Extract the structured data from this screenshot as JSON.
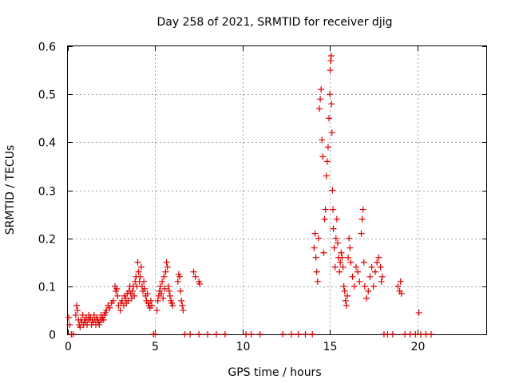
{
  "chart_data": {
    "type": "scatter",
    "title": "Day 258 of 2021, SRMTID for receiver djig",
    "xlabel": "GPS time / hours",
    "ylabel": "SRMTID / TECUs",
    "xlim": [
      0,
      24
    ],
    "ylim": [
      0,
      0.6
    ],
    "x_ticks": [
      0,
      5,
      10,
      15,
      20
    ],
    "x_tick_labels": [
      "0",
      "5",
      "10",
      "15",
      "20"
    ],
    "y_ticks": [
      0,
      0.1,
      0.2,
      0.3,
      0.4,
      0.5,
      0.6
    ],
    "y_tick_labels": [
      "0",
      "0.1",
      "0.2",
      "0.3",
      "0.4",
      "0.5",
      "0.6"
    ],
    "grid": true,
    "marker": "+",
    "series": [
      {
        "name": "SRMTID",
        "color": "#dd0000",
        "points": [
          [
            0.05,
            0.035
          ],
          [
            0.1,
            0.02
          ],
          [
            0.2,
            0.0
          ],
          [
            0.3,
            0.0
          ],
          [
            0.45,
            0.04
          ],
          [
            0.5,
            0.06
          ],
          [
            0.55,
            0.05
          ],
          [
            0.6,
            0.03
          ],
          [
            0.65,
            0.02
          ],
          [
            0.7,
            0.015
          ],
          [
            0.75,
            0.03
          ],
          [
            0.8,
            0.025
          ],
          [
            0.85,
            0.04
          ],
          [
            0.9,
            0.02
          ],
          [
            0.95,
            0.03
          ],
          [
            1.0,
            0.025
          ],
          [
            1.05,
            0.035
          ],
          [
            1.1,
            0.02
          ],
          [
            1.15,
            0.03
          ],
          [
            1.2,
            0.04
          ],
          [
            1.25,
            0.03
          ],
          [
            1.3,
            0.035
          ],
          [
            1.35,
            0.02
          ],
          [
            1.4,
            0.03
          ],
          [
            1.45,
            0.025
          ],
          [
            1.5,
            0.04
          ],
          [
            1.55,
            0.03
          ],
          [
            1.6,
            0.02
          ],
          [
            1.65,
            0.035
          ],
          [
            1.7,
            0.03
          ],
          [
            1.75,
            0.025
          ],
          [
            1.8,
            0.02
          ],
          [
            1.85,
            0.03
          ],
          [
            1.9,
            0.04
          ],
          [
            1.95,
            0.03
          ],
          [
            2.0,
            0.035
          ],
          [
            2.05,
            0.03
          ],
          [
            2.1,
            0.04
          ],
          [
            2.15,
            0.045
          ],
          [
            2.2,
            0.05
          ],
          [
            2.3,
            0.06
          ],
          [
            2.4,
            0.055
          ],
          [
            2.5,
            0.065
          ],
          [
            2.6,
            0.07
          ],
          [
            2.7,
            0.1
          ],
          [
            2.75,
            0.09
          ],
          [
            2.8,
            0.095
          ],
          [
            2.85,
            0.08
          ],
          [
            2.9,
            0.06
          ],
          [
            3.0,
            0.05
          ],
          [
            3.05,
            0.065
          ],
          [
            3.1,
            0.07
          ],
          [
            3.2,
            0.06
          ],
          [
            3.25,
            0.08
          ],
          [
            3.3,
            0.075
          ],
          [
            3.35,
            0.065
          ],
          [
            3.4,
            0.085
          ],
          [
            3.45,
            0.07
          ],
          [
            3.5,
            0.09
          ],
          [
            3.55,
            0.1
          ],
          [
            3.6,
            0.085
          ],
          [
            3.65,
            0.075
          ],
          [
            3.7,
            0.09
          ],
          [
            3.75,
            0.1
          ],
          [
            3.8,
            0.08
          ],
          [
            3.85,
            0.11
          ],
          [
            3.9,
            0.12
          ],
          [
            3.95,
            0.1
          ],
          [
            4.0,
            0.15
          ],
          [
            4.05,
            0.13
          ],
          [
            4.1,
            0.11
          ],
          [
            4.15,
            0.12
          ],
          [
            4.2,
            0.14
          ],
          [
            4.25,
            0.1
          ],
          [
            4.3,
            0.09
          ],
          [
            4.35,
            0.11
          ],
          [
            4.4,
            0.095
          ],
          [
            4.45,
            0.08
          ],
          [
            4.5,
            0.07
          ],
          [
            4.55,
            0.085
          ],
          [
            4.6,
            0.065
          ],
          [
            4.65,
            0.06
          ],
          [
            4.7,
            0.055
          ],
          [
            4.75,
            0.07
          ],
          [
            4.8,
            0.06
          ],
          [
            4.9,
            0.0
          ],
          [
            5.0,
            0.0
          ],
          [
            5.1,
            0.05
          ],
          [
            5.15,
            0.07
          ],
          [
            5.2,
            0.08
          ],
          [
            5.25,
            0.09
          ],
          [
            5.3,
            0.1
          ],
          [
            5.35,
            0.085
          ],
          [
            5.4,
            0.11
          ],
          [
            5.45,
            0.075
          ],
          [
            5.5,
            0.12
          ],
          [
            5.55,
            0.095
          ],
          [
            5.6,
            0.13
          ],
          [
            5.65,
            0.15
          ],
          [
            5.7,
            0.14
          ],
          [
            5.75,
            0.1
          ],
          [
            5.8,
            0.09
          ],
          [
            5.85,
            0.08
          ],
          [
            5.9,
            0.07
          ],
          [
            5.95,
            0.065
          ],
          [
            6.0,
            0.06
          ],
          [
            6.3,
            0.11
          ],
          [
            6.35,
            0.125
          ],
          [
            6.4,
            0.12
          ],
          [
            6.45,
            0.09
          ],
          [
            6.5,
            0.07
          ],
          [
            6.55,
            0.06
          ],
          [
            6.6,
            0.05
          ],
          [
            6.7,
            0.0
          ],
          [
            7.2,
            0.13
          ],
          [
            7.3,
            0.12
          ],
          [
            7.5,
            0.11
          ],
          [
            7.55,
            0.105
          ],
          [
            7.0,
            0.0
          ],
          [
            7.5,
            0.0
          ],
          [
            8.0,
            0.0
          ],
          [
            8.5,
            0.0
          ],
          [
            9.0,
            0.0
          ],
          [
            10.2,
            0.0
          ],
          [
            10.5,
            0.0
          ],
          [
            11.0,
            0.0
          ],
          [
            12.3,
            0.0
          ],
          [
            12.8,
            0.0
          ],
          [
            13.2,
            0.0
          ],
          [
            13.6,
            0.0
          ],
          [
            14.0,
            0.0
          ],
          [
            14.1,
            0.18
          ],
          [
            14.15,
            0.21
          ],
          [
            14.2,
            0.16
          ],
          [
            14.25,
            0.13
          ],
          [
            14.3,
            0.11
          ],
          [
            14.35,
            0.2
          ],
          [
            14.4,
            0.47
          ],
          [
            14.45,
            0.49
          ],
          [
            14.5,
            0.51
          ],
          [
            14.55,
            0.405
          ],
          [
            14.6,
            0.37
          ],
          [
            14.65,
            0.17
          ],
          [
            14.7,
            0.24
          ],
          [
            14.75,
            0.26
          ],
          [
            14.8,
            0.33
          ],
          [
            14.85,
            0.36
          ],
          [
            14.9,
            0.39
          ],
          [
            14.95,
            0.45
          ],
          [
            15.0,
            0.5
          ],
          [
            15.02,
            0.55
          ],
          [
            15.05,
            0.57
          ],
          [
            15.08,
            0.58
          ],
          [
            15.1,
            0.48
          ],
          [
            15.12,
            0.42
          ],
          [
            15.15,
            0.3
          ],
          [
            15.18,
            0.26
          ],
          [
            15.2,
            0.22
          ],
          [
            15.25,
            0.18
          ],
          [
            15.3,
            0.14
          ],
          [
            15.35,
            0.2
          ],
          [
            15.4,
            0.24
          ],
          [
            15.45,
            0.19
          ],
          [
            15.5,
            0.16
          ],
          [
            15.55,
            0.13
          ],
          [
            15.6,
            0.15
          ],
          [
            15.65,
            0.17
          ],
          [
            15.7,
            0.16
          ],
          [
            15.75,
            0.14
          ],
          [
            15.8,
            0.1
          ],
          [
            15.85,
            0.09
          ],
          [
            15.9,
            0.07
          ],
          [
            15.95,
            0.06
          ],
          [
            16.0,
            0.08
          ],
          [
            16.05,
            0.16
          ],
          [
            16.1,
            0.2
          ],
          [
            16.15,
            0.18
          ],
          [
            16.2,
            0.15
          ],
          [
            16.3,
            0.12
          ],
          [
            16.4,
            0.1
          ],
          [
            16.5,
            0.14
          ],
          [
            16.6,
            0.13
          ],
          [
            16.7,
            0.11
          ],
          [
            16.8,
            0.21
          ],
          [
            16.85,
            0.24
          ],
          [
            16.9,
            0.26
          ],
          [
            16.95,
            0.15
          ],
          [
            17.0,
            0.1
          ],
          [
            17.1,
            0.075
          ],
          [
            17.2,
            0.09
          ],
          [
            17.3,
            0.12
          ],
          [
            17.4,
            0.14
          ],
          [
            17.5,
            0.1
          ],
          [
            17.6,
            0.13
          ],
          [
            17.7,
            0.15
          ],
          [
            17.8,
            0.16
          ],
          [
            17.9,
            0.14
          ],
          [
            17.95,
            0.11
          ],
          [
            18.0,
            0.12
          ],
          [
            18.1,
            0.0
          ],
          [
            18.3,
            0.0
          ],
          [
            18.6,
            0.0
          ],
          [
            18.9,
            0.1
          ],
          [
            19.0,
            0.09
          ],
          [
            19.05,
            0.11
          ],
          [
            19.1,
            0.085
          ],
          [
            19.3,
            0.0
          ],
          [
            19.6,
            0.0
          ],
          [
            19.9,
            0.0
          ],
          [
            20.1,
            0.045
          ],
          [
            20.2,
            0.0
          ],
          [
            20.5,
            0.0
          ],
          [
            20.8,
            0.0
          ]
        ]
      }
    ]
  }
}
